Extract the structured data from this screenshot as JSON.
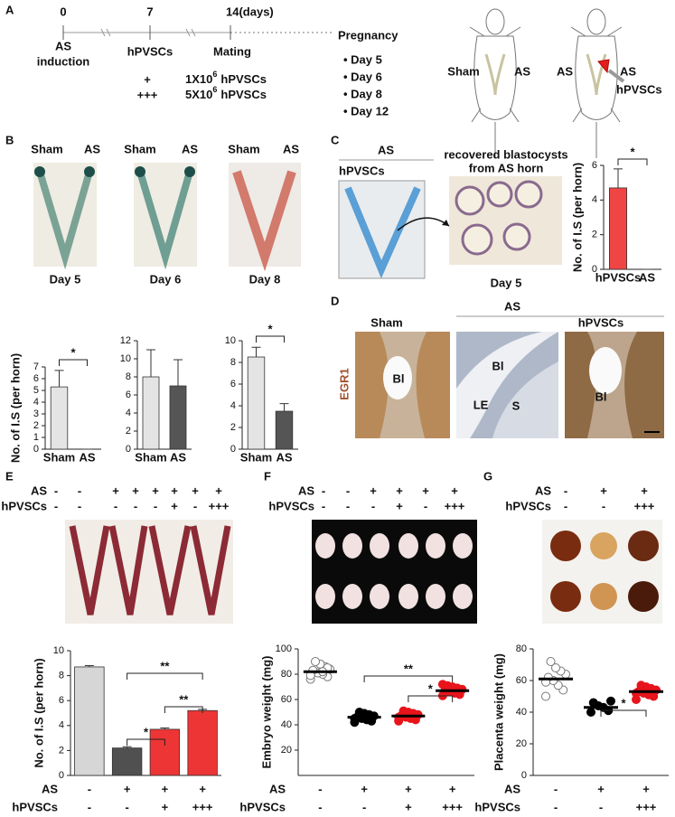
{
  "panels": {
    "a": {
      "letter": "A",
      "timeline": {
        "days": [
          "0",
          "7",
          "14(days)"
        ],
        "events": [
          [
            "AS",
            "induction"
          ],
          [
            "hPVSCs"
          ],
          [
            "Mating"
          ]
        ]
      },
      "doses": [
        {
          "symbol": "+",
          "base": "1X10",
          "exponent": "6",
          "unit": "hPVSCs"
        },
        {
          "symbol": "+++",
          "base": "5X10",
          "exponent": "6",
          "unit": "hPVSCs"
        }
      ],
      "outcome": {
        "title": "Pregnancy",
        "items": [
          "• Day 5",
          "• Day 6",
          "• Day 8",
          "• Day 12"
        ]
      },
      "mice": [
        {
          "left": "Sham",
          "right": "AS"
        },
        {
          "left": "AS",
          "right": "AS",
          "treatment": "hPVSCs"
        }
      ]
    },
    "b": {
      "letter": "B",
      "photos": [
        {
          "left": "Sham",
          "right": "AS",
          "day": "Day 5"
        },
        {
          "left": "Sham",
          "right": "AS",
          "day": "Day 6"
        },
        {
          "left": "Sham",
          "right": "AS",
          "day": "Day 8"
        }
      ]
    },
    "c": {
      "letter": "C",
      "group": "AS",
      "treatment": "hPVSCs",
      "caption": [
        "recovered blastocysts",
        "from AS horn"
      ],
      "day": "Day 5"
    },
    "d": {
      "letter": "D",
      "group": "AS",
      "stain": "EGR1",
      "columns": [
        "Sham",
        "hPVSCs"
      ],
      "labels": [
        "Bl",
        "Bl",
        "LE",
        "S",
        "Bl"
      ]
    },
    "e": {
      "letter": "E",
      "rows": [
        {
          "label": "AS",
          "values": [
            "-",
            "-",
            "+",
            "+",
            "+",
            "+",
            "+",
            "+"
          ]
        },
        {
          "label": "hPVSCs",
          "values": [
            "-",
            "-",
            "-",
            "-",
            "-",
            "+",
            "-",
            "+++"
          ]
        }
      ]
    },
    "f": {
      "letter": "F",
      "rows": [
        {
          "label": "AS",
          "values": [
            "-",
            "-",
            "+",
            "+",
            "+",
            "+"
          ]
        },
        {
          "label": "hPVSCs",
          "values": [
            "-",
            "-",
            "-",
            "+",
            "-",
            "+++"
          ]
        }
      ]
    },
    "g": {
      "letter": "G",
      "rows": [
        {
          "label": "AS",
          "values": [
            "-",
            "+",
            "+"
          ]
        },
        {
          "label": "hPVSCs",
          "values": [
            "-",
            "-",
            "+++"
          ]
        }
      ]
    }
  },
  "chart_data": [
    {
      "type": "bar",
      "ylabel": "No. of I.S (per horn)",
      "categories": [
        "Sham",
        "AS"
      ],
      "values": [
        5.3,
        0
      ],
      "errors": [
        1.4,
        0
      ],
      "colors": [
        "#e4e4e4",
        "#555555"
      ],
      "ylim": [
        0,
        7
      ],
      "yticks": [
        0,
        1,
        2,
        3,
        4,
        5,
        6,
        7
      ],
      "annotations": [
        "*"
      ]
    },
    {
      "type": "bar",
      "categories": [
        "Sham",
        "AS"
      ],
      "values": [
        8,
        7
      ],
      "errors": [
        3,
        2.9
      ],
      "colors": [
        "#e4e4e4",
        "#555555"
      ],
      "ylim": [
        0,
        12
      ],
      "yticks": [
        0,
        2,
        4,
        6,
        8,
        10,
        12
      ],
      "annotations": []
    },
    {
      "type": "bar",
      "categories": [
        "Sham",
        "AS"
      ],
      "values": [
        8.5,
        3.5
      ],
      "errors": [
        0.9,
        0.7
      ],
      "colors": [
        "#e4e4e4",
        "#555555"
      ],
      "ylim": [
        0,
        10
      ],
      "yticks": [
        0,
        2,
        4,
        6,
        8,
        10
      ],
      "annotations": [
        "*"
      ]
    },
    {
      "type": "bar",
      "ylabel": "No. of I.S (per horn)",
      "categories": [
        "hPVSCs",
        "AS"
      ],
      "values": [
        4.7,
        0
      ],
      "errors": [
        1.1,
        0
      ],
      "colors": [
        "#f04545",
        "#f04545"
      ],
      "ylim": [
        0,
        6
      ],
      "yticks": [
        0,
        2,
        4,
        6
      ],
      "annotations": [
        "*"
      ]
    },
    {
      "type": "bar",
      "ylabel": "No. of I.S (per horn)",
      "values": [
        8.7,
        2.2,
        3.7,
        5.2
      ],
      "errors": [
        0.1,
        0.1,
        0.1,
        0.1
      ],
      "colors": [
        "#d6d6d6",
        "#505050",
        "#ee3535",
        "#ee3535"
      ],
      "ylim": [
        0,
        10
      ],
      "yticks": [
        0,
        2,
        4,
        6,
        8,
        10
      ],
      "conditions": [
        {
          "label": "AS",
          "values": [
            "-",
            "+",
            "+",
            "+"
          ]
        },
        {
          "label": "hPVSCs",
          "values": [
            "-",
            "-",
            "+",
            "+++"
          ]
        }
      ],
      "annotations": [
        "**",
        "**",
        "*"
      ]
    },
    {
      "type": "dot",
      "ylabel": "Embryo weight (mg)",
      "means": [
        82,
        46,
        47,
        67
      ],
      "points": [
        [
          76,
          78,
          80,
          81,
          83,
          84,
          86,
          88,
          90,
          79,
          85,
          82
        ],
        [
          42,
          43,
          44,
          45,
          46,
          47,
          48,
          49,
          50,
          45,
          47,
          46
        ],
        [
          43,
          44,
          45,
          46,
          47,
          48,
          49,
          50,
          51,
          46
        ],
        [
          63,
          64,
          65,
          66,
          67,
          68,
          69,
          70,
          71,
          72,
          67,
          66
        ]
      ],
      "colors": [
        "#ffffff",
        "#000000",
        "#e8141b",
        "#e8141b"
      ],
      "ylim": [
        0,
        100
      ],
      "yticks": [
        20,
        40,
        60,
        80,
        100
      ],
      "conditions": [
        {
          "label": "AS",
          "values": [
            "-",
            "+",
            "+",
            "+"
          ]
        },
        {
          "label": "hPVSCs",
          "values": [
            "-",
            "-",
            "+",
            "+++"
          ]
        }
      ],
      "annotations": [
        "**",
        "*"
      ]
    },
    {
      "type": "dot",
      "ylabel": "Placenta weight (mg)",
      "means": [
        61,
        43,
        53
      ],
      "points": [
        [
          50,
          54,
          57,
          60,
          62,
          64,
          66,
          68,
          72,
          59
        ],
        [
          40,
          41,
          43,
          44,
          46,
          47
        ],
        [
          48,
          50,
          51,
          52,
          53,
          54,
          55,
          56,
          57,
          52
        ]
      ],
      "colors": [
        "#ffffff",
        "#000000",
        "#e8141b"
      ],
      "ylim": [
        0,
        80
      ],
      "yticks": [
        0,
        20,
        40,
        60,
        80
      ],
      "conditions": [
        {
          "label": "AS",
          "values": [
            "-",
            "+",
            "+"
          ]
        },
        {
          "label": "hPVSCs",
          "values": [
            "-",
            "-",
            "+++"
          ]
        }
      ],
      "annotations": [
        "*"
      ]
    }
  ]
}
